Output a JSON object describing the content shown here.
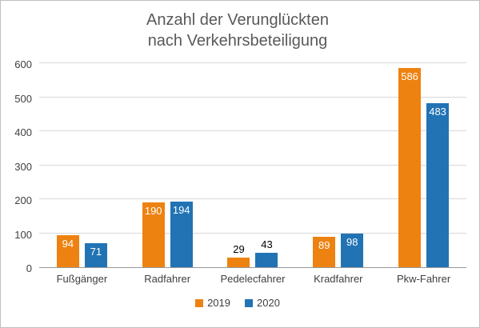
{
  "chart_data": {
    "type": "bar",
    "title": "Anzahl der Verunglückten nach Verkehrsbeteiligung",
    "title_lines": [
      "Anzahl der Verunglückten",
      "nach Verkehrsbeteiligung"
    ],
    "categories": [
      "Fußgänger",
      "Radfahrer",
      "Pedelecfahrer",
      "Kradfahrer",
      "Pkw-Fahrer"
    ],
    "series": [
      {
        "name": "2019",
        "color": "#ee8210",
        "values": [
          94,
          190,
          29,
          89,
          586
        ]
      },
      {
        "name": "2020",
        "color": "#2173b4",
        "values": [
          71,
          194,
          43,
          98,
          483
        ]
      }
    ],
    "xlabel": "",
    "ylabel": "",
    "ylim": [
      0,
      600
    ],
    "ytick_step": 100,
    "grid": true,
    "legend_position": "bottom"
  },
  "colors": {
    "title_text": "#595959",
    "axis_text": "#404040",
    "gridline": "#d9d9d9",
    "axis_line": "#9a9a9a",
    "border": "#bfbfbf"
  }
}
